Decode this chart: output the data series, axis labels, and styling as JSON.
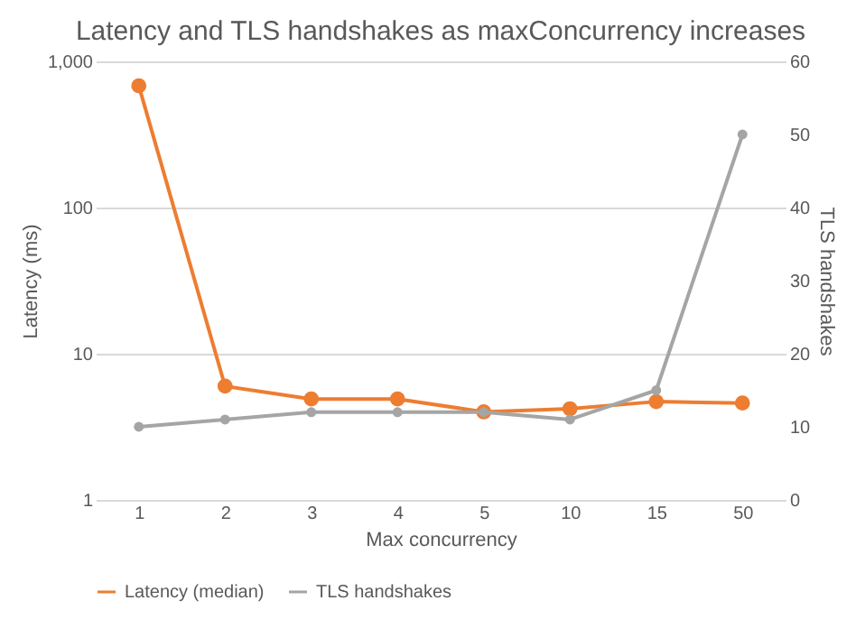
{
  "chart_data": {
    "type": "line",
    "title": "Latency and TLS handshakes as maxConcurrency increases",
    "xlabel": "Max concurrency",
    "ylabel": "Latency (ms)",
    "y2label": "TLS handshakes",
    "categories": [
      "1",
      "2",
      "3",
      "4",
      "5",
      "10",
      "15",
      "50"
    ],
    "series": [
      {
        "name": "Latency (median)",
        "color": "#ed7d31",
        "values": [
          680,
          6.0,
          4.9,
          4.9,
          4.0,
          4.2,
          4.7,
          4.6
        ]
      },
      {
        "name": "TLS handshakes",
        "color": "#a5a5a5",
        "axis": "y2",
        "values": [
          10,
          11,
          12,
          12,
          12,
          11,
          15,
          50
        ]
      }
    ],
    "log": "y",
    "ylim": [
      1,
      1000
    ],
    "yticks": [
      1,
      10,
      100,
      {
        "value": 1000,
        "label": "1,000"
      }
    ],
    "y2lim": [
      0,
      60
    ],
    "y2ticks": [
      0,
      10,
      20,
      30,
      40,
      50,
      60
    ],
    "grid": "y",
    "legend": "bottom",
    "marker": "circle",
    "line_style": "solid"
  }
}
